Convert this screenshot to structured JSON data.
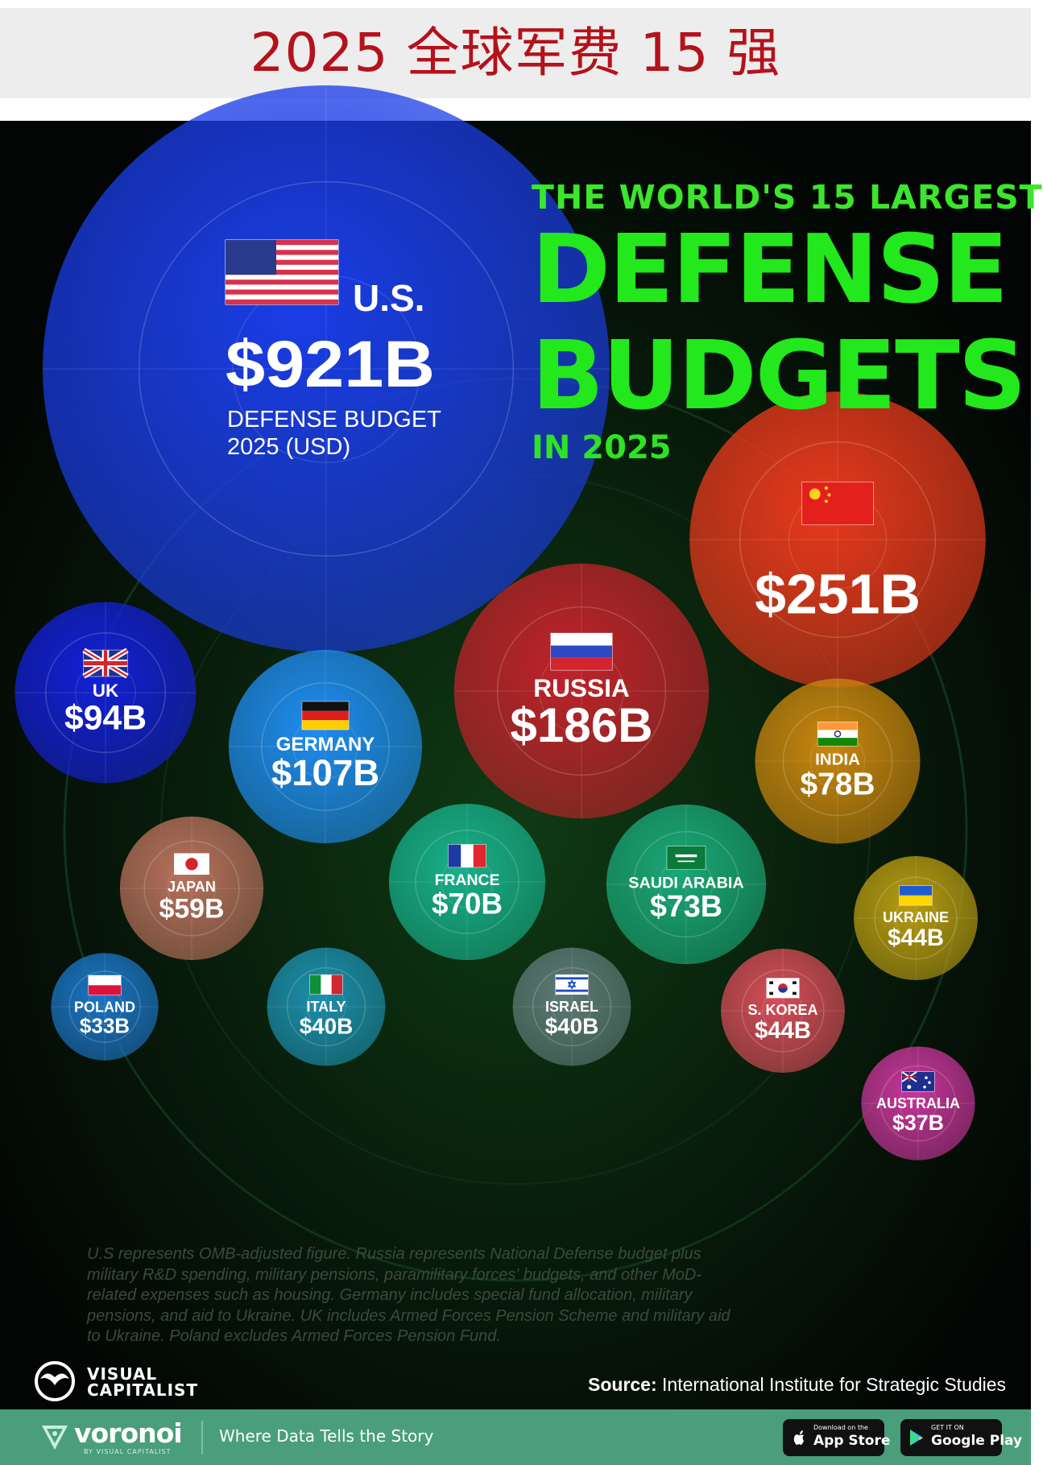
{
  "page_title": "2025 全球军费 15 强",
  "headline": {
    "line1": "THE WORLD'S 15 LARGEST",
    "line2": "DEFENSE",
    "line3": "BUDGETS",
    "line4": "IN 2025"
  },
  "us_caption": {
    "line1": "DEFENSE BUDGET",
    "line2": "2025 (USD)"
  },
  "chart_data": {
    "type": "bubble",
    "title": "THE WORLD'S 15 LARGEST DEFENSE BUDGETS IN 2025",
    "unit": "USD billions",
    "series": [
      {
        "label": "U.S.",
        "value": 921,
        "display": "$921B",
        "color": "#1a3de6",
        "flag": "us-flag-icon"
      },
      {
        "label": "",
        "value": 251,
        "display": "$251B",
        "color": "#e8391c",
        "flag": "china-flag-icon"
      },
      {
        "label": "RUSSIA",
        "value": 186,
        "display": "$186B",
        "color": "#c0222a",
        "flag": "russia-flag-icon"
      },
      {
        "label": "GERMANY",
        "value": 107,
        "display": "$107B",
        "color": "#1f8cf0",
        "flag": "germany-flag-icon"
      },
      {
        "label": "UK",
        "value": 94,
        "display": "$94B",
        "color": "#1320d8",
        "flag": "uk-flag-icon"
      },
      {
        "label": "INDIA",
        "value": 78,
        "display": "$78B",
        "color": "#c9860e",
        "flag": "india-flag-icon"
      },
      {
        "label": "SAUDI ARABIA",
        "value": 73,
        "display": "$73B",
        "color": "#1aa878",
        "flag": "saudi-arabia-flag-icon"
      },
      {
        "label": "FRANCE",
        "value": 70,
        "display": "$70B",
        "color": "#17b08a",
        "flag": "france-flag-icon"
      },
      {
        "label": "JAPAN",
        "value": 59,
        "display": "$59B",
        "color": "#b8715c",
        "flag": "japan-flag-icon"
      },
      {
        "label": "UKRAINE",
        "value": 44,
        "display": "$44B",
        "color": "#b79c12",
        "flag": "ukraine-flag-icon"
      },
      {
        "label": "S. KOREA",
        "value": 44,
        "display": "$44B",
        "color": "#d64c58",
        "flag": "south-korea-flag-icon"
      },
      {
        "label": "ITALY",
        "value": 40,
        "display": "$40B",
        "color": "#1c8fae",
        "flag": "italy-flag-icon"
      },
      {
        "label": "ISRAEL",
        "value": 40,
        "display": "$40B",
        "color": "#5d7a76",
        "flag": "israel-flag-icon"
      },
      {
        "label": "AUSTRALIA",
        "value": 37,
        "display": "$37B",
        "color": "#c7359a",
        "flag": "australia-flag-icon"
      },
      {
        "label": "POLAND",
        "value": 33,
        "display": "$33B",
        "color": "#1b74c4",
        "flag": "poland-flag-icon"
      }
    ]
  },
  "footnote": "U.S represents OMB-adjusted figure. Russia represents National Defense budget plus military R&D spending, military pensions, paramilitary forces' budgets, and other MoD-related expenses such as housing. Germany includes special fund allocation, military pensions, and aid to Ukraine. UK includes Armed Forces Pension Scheme and military aid to Ukraine. Poland excludes Armed Forces Pension Fund.",
  "brand": {
    "vc_line1": "VISUAL",
    "vc_line2": "CAPITALIST"
  },
  "source": {
    "label": "Source:",
    "text": "International Institute for Strategic Studies"
  },
  "footer": {
    "brand": "voronoi",
    "brand_sub": "BY VISUAL CAPITALIST",
    "tagline": "Where Data Tells the Story",
    "appstore_small": "Download on the",
    "appstore_big": "App Store",
    "googleplay_small": "GET IT ON",
    "googleplay_big": "Google Play"
  }
}
